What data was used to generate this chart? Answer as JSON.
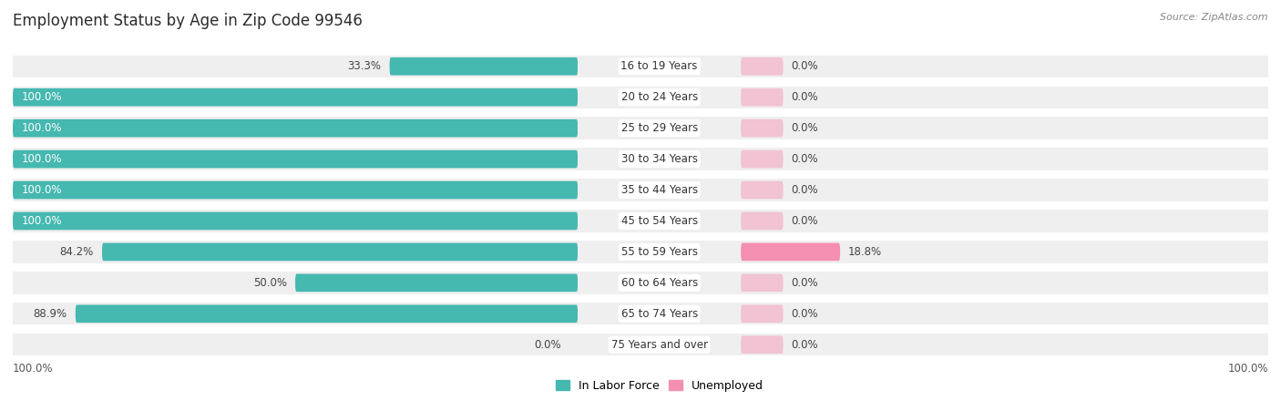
{
  "title": "Employment Status by Age in Zip Code 99546",
  "source": "Source: ZipAtlas.com",
  "categories": [
    "16 to 19 Years",
    "20 to 24 Years",
    "25 to 29 Years",
    "30 to 34 Years",
    "35 to 44 Years",
    "45 to 54 Years",
    "55 to 59 Years",
    "60 to 64 Years",
    "65 to 74 Years",
    "75 Years and over"
  ],
  "labor_force": [
    33.3,
    100.0,
    100.0,
    100.0,
    100.0,
    100.0,
    84.2,
    50.0,
    88.9,
    0.0
  ],
  "unemployed": [
    0.0,
    0.0,
    0.0,
    0.0,
    0.0,
    0.0,
    18.8,
    0.0,
    0.0,
    0.0
  ],
  "labor_force_color": "#45b8b0",
  "unemployed_color": "#f48fb1",
  "row_bg_color": "#efefef",
  "title_fontsize": 12,
  "source_fontsize": 8,
  "label_fontsize": 8.5,
  "cat_fontsize": 8.5,
  "axis_max": 100.0,
  "legend_labor_label": "In Labor Force",
  "legend_unemployed_label": "Unemployed",
  "unemployed_stub": 8.0,
  "unemployed_stub_alpha": 0.45
}
